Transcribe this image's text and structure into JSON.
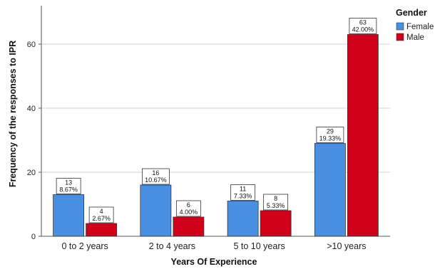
{
  "chart_data": {
    "type": "bar",
    "xlabel": "Years Of Experience",
    "ylabel": "Frequency of the responses to IPR",
    "ylim": [
      0,
      72
    ],
    "yticks": [
      0,
      20,
      40,
      60
    ],
    "grid": true,
    "categories": [
      "0 to 2 years",
      "2 to 4 years",
      "5 to 10 years",
      ">10 years"
    ],
    "legend": {
      "title": "Gender",
      "placement": "top-right"
    },
    "series": [
      {
        "name": "Female",
        "color": "#4a90e2",
        "values": [
          13,
          16,
          11,
          29
        ],
        "percent_labels": [
          "8.67%",
          "10.67%",
          "7.33%",
          "19.33%"
        ]
      },
      {
        "name": "Male",
        "color": "#d0021b",
        "values": [
          4,
          6,
          8,
          63
        ],
        "percent_labels": [
          "2.67%",
          "4.00%",
          "5.33%",
          "42.00%"
        ]
      }
    ]
  }
}
